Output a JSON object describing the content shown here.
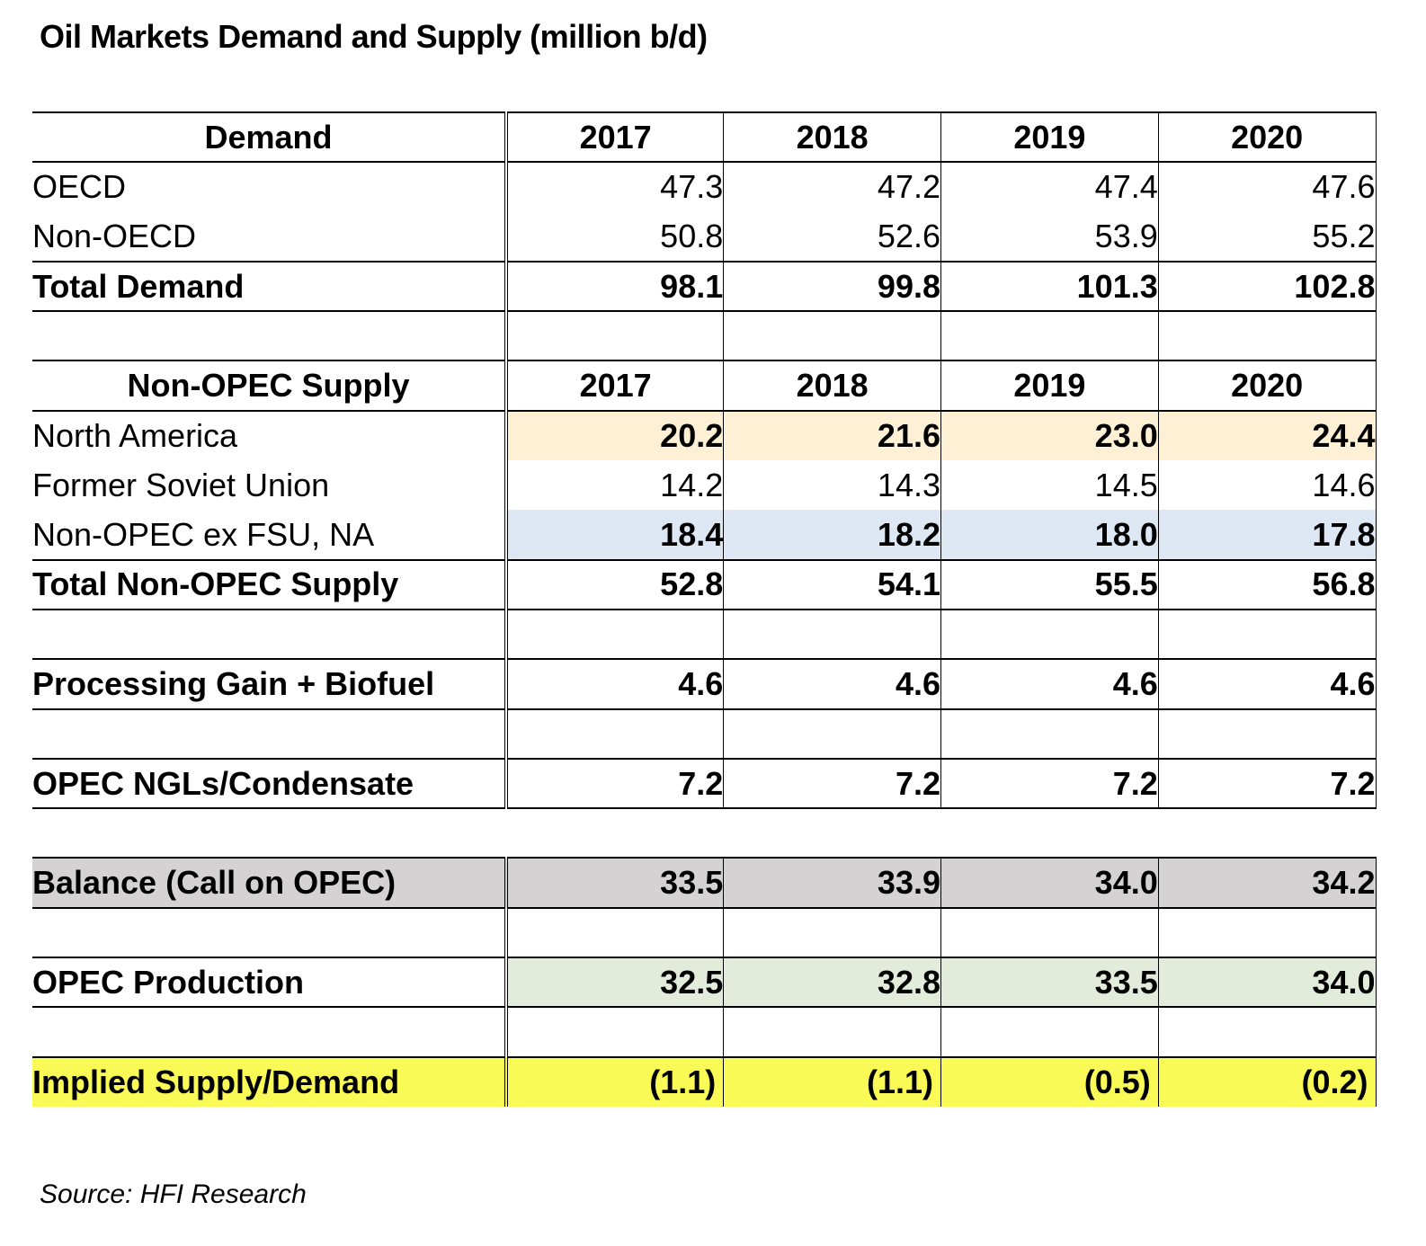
{
  "title": "Oil Markets Demand and Supply (million b/d)",
  "source": "Source: HFI Research",
  "demand": {
    "header": "Demand",
    "years": [
      "2017",
      "2018",
      "2019",
      "2020"
    ],
    "rows": [
      {
        "label": "OECD",
        "values": [
          "47.3",
          "47.2",
          "47.4",
          "47.6"
        ]
      },
      {
        "label": "Non-OECD",
        "values": [
          "50.8",
          "52.6",
          "53.9",
          "55.2"
        ]
      }
    ],
    "total": {
      "label": "Total Demand",
      "values": [
        "98.1",
        "99.8",
        "101.3",
        "102.8"
      ]
    }
  },
  "supply": {
    "header": "Non-OPEC Supply",
    "years": [
      "2017",
      "2018",
      "2019",
      "2020"
    ],
    "rows": [
      {
        "label": "North America",
        "values": [
          "20.2",
          "21.6",
          "23.0",
          "24.4"
        ]
      },
      {
        "label": "Former Soviet Union",
        "values": [
          "14.2",
          "14.3",
          "14.5",
          "14.6"
        ]
      },
      {
        "label": "Non-OPEC ex FSU, NA",
        "values": [
          "18.4",
          "18.2",
          "18.0",
          "17.8"
        ]
      }
    ],
    "total": {
      "label": "Total Non-OPEC Supply",
      "values": [
        "52.8",
        "54.1",
        "55.5",
        "56.8"
      ]
    }
  },
  "processing": {
    "label": "Processing Gain + Biofuel",
    "values": [
      "4.6",
      "4.6",
      "4.6",
      "4.6"
    ]
  },
  "ngls": {
    "label": "OPEC NGLs/Condensate",
    "values": [
      "7.2",
      "7.2",
      "7.2",
      "7.2"
    ]
  },
  "balance": {
    "label": "Balance (Call on OPEC)",
    "values": [
      "33.5",
      "33.9",
      "34.0",
      "34.2"
    ]
  },
  "opec_production": {
    "label": "OPEC Production",
    "values": [
      "32.5",
      "32.8",
      "33.5",
      "34.0"
    ]
  },
  "implied": {
    "label": "Implied Supply/Demand",
    "values": [
      "(1.1)",
      "(1.1)",
      "(0.5)",
      "(0.2)"
    ]
  },
  "colors": {
    "north_america_fill": "#fdf0d5",
    "non_opec_ex_fill": "#dde8f4",
    "balance_fill": "#d4d2d3",
    "opec_production_fill": "#e3ecdb",
    "implied_fill": "#fafa57"
  }
}
